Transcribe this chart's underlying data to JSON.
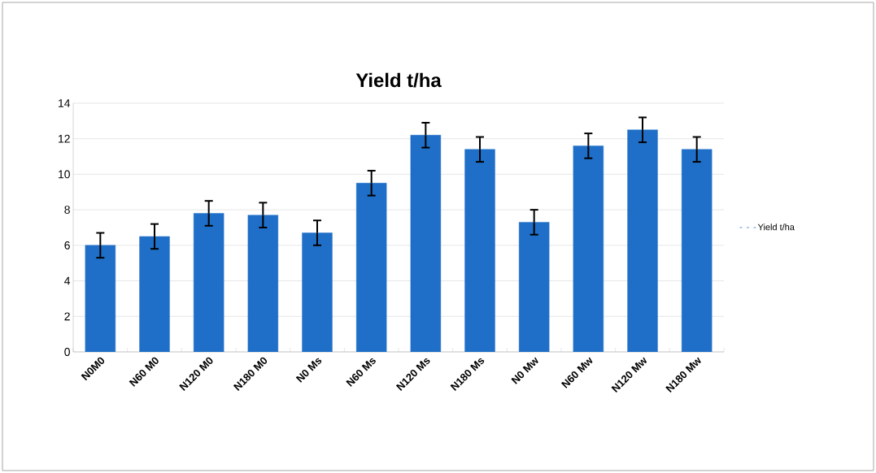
{
  "chart_data": {
    "type": "bar",
    "title": "Yield t/ha",
    "categories": [
      "N0M0",
      "N60 M0",
      "N120 M0",
      "N180 M0",
      "N0 Ms",
      "N60 Ms",
      "N120 Ms",
      "N180 Ms",
      "N0 Mw",
      "N60 Mw",
      "N120 Mw",
      "N180 Mw"
    ],
    "series": [
      {
        "name": "Yield t/ha",
        "color": "#1f6fc8",
        "values": [
          6.0,
          6.5,
          7.8,
          7.7,
          6.7,
          9.5,
          12.2,
          11.4,
          7.3,
          11.6,
          12.5,
          11.4
        ],
        "errors": [
          0.7,
          0.7,
          0.7,
          0.7,
          0.7,
          0.7,
          0.7,
          0.7,
          0.7,
          0.7,
          0.7,
          0.7
        ]
      }
    ],
    "ylim": [
      0,
      14
    ],
    "yticks": [
      0,
      2,
      4,
      6,
      8,
      10,
      12,
      14
    ],
    "grid": "y",
    "legend": "right"
  }
}
